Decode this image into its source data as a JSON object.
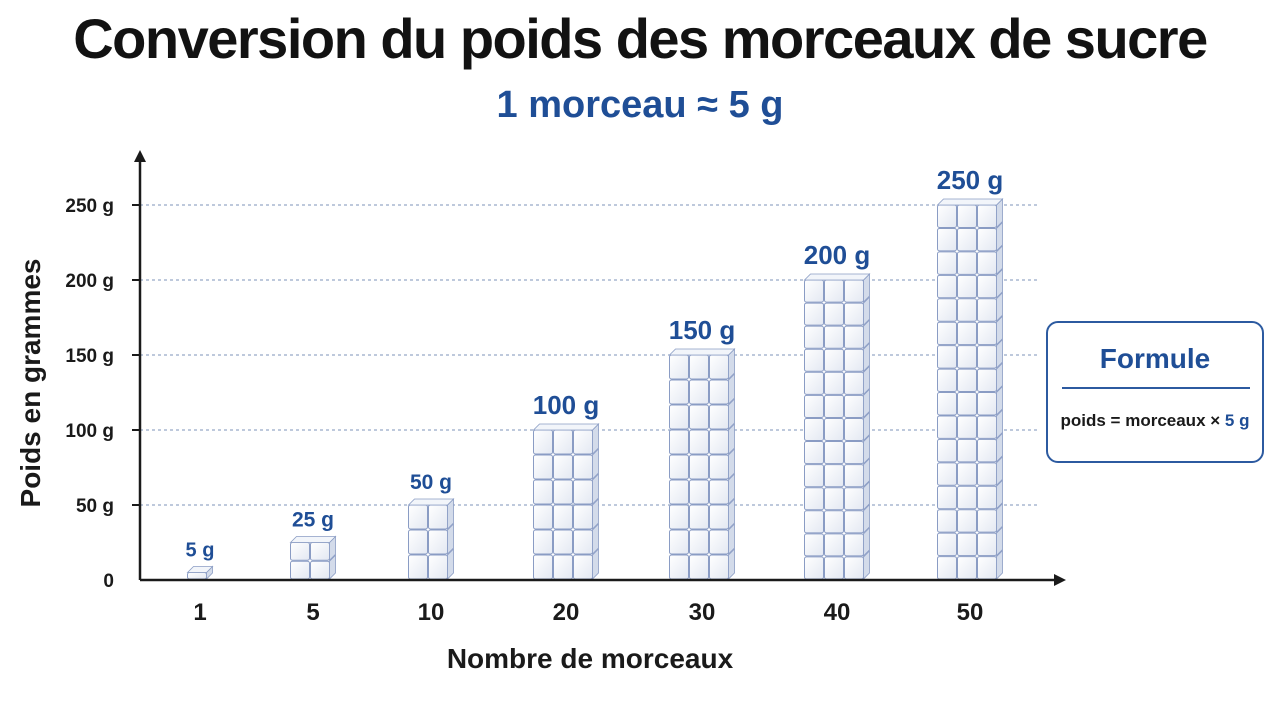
{
  "title": "Conversion du poids des morceaux de sucre",
  "subtitle": "1 morceau ≈ 5 g",
  "formula": {
    "title": "Formule",
    "text_left": "poids = morceaux ×",
    "text_right": "5 g"
  },
  "chart_data": {
    "type": "bar",
    "title": "Conversion du poids des morceaux de sucre",
    "subtitle": "1 morceau ≈ 5 g",
    "xlabel": "Nombre de morceaux",
    "ylabel": "Poids en grammes",
    "categories": [
      "1",
      "5",
      "10",
      "20",
      "30",
      "40",
      "50"
    ],
    "values": [
      5,
      25,
      50,
      100,
      150,
      200,
      250
    ],
    "data_labels": [
      "5 g",
      "25 g",
      "50 g",
      "100 g",
      "150 g",
      "200 g",
      "250 g"
    ],
    "ylim": [
      0,
      250
    ],
    "yticks": [
      0,
      50,
      100,
      150,
      200,
      250
    ],
    "ytick_labels": [
      "0",
      "50 g",
      "100 g",
      "150 g",
      "200 g",
      "250 g"
    ],
    "grid": true,
    "bar_style": "stacked-sugar-cubes",
    "colors": {
      "label": "#1f4e96",
      "grid": "#7d93b8",
      "cube_edge": "#8a9cc4"
    }
  }
}
